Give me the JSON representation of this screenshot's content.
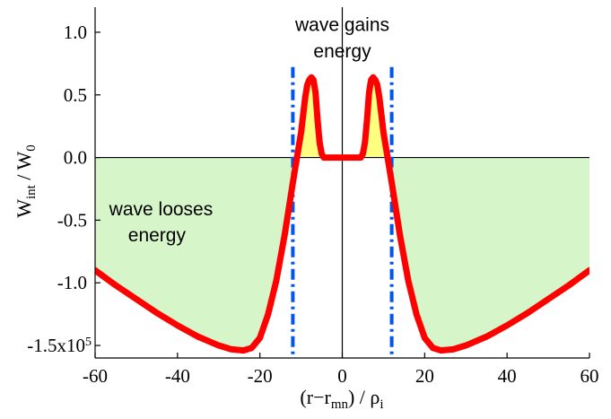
{
  "chart_data": {
    "type": "line",
    "xlabel": {
      "base": "(r−r",
      "sub": "mn",
      "mid": ") / ρ",
      "sub2": "i"
    },
    "ylabel": {
      "base": "W",
      "sub": "int",
      "mid": " / W",
      "sub2": "0"
    },
    "xlim": [
      -60,
      60
    ],
    "ylim": [
      -1.6,
      1.2
    ],
    "x_ticks": [
      {
        "value": -60,
        "label": "-60"
      },
      {
        "value": -40,
        "label": "-40"
      },
      {
        "value": -20,
        "label": "-20"
      },
      {
        "value": 0,
        "label": "0"
      },
      {
        "value": 20,
        "label": "20"
      },
      {
        "value": 40,
        "label": "40"
      },
      {
        "value": 60,
        "label": "60"
      }
    ],
    "y_ticks": [
      {
        "value": 1.0,
        "label": "1.0"
      },
      {
        "value": 0.5,
        "label": "0.5"
      },
      {
        "value": 0.0,
        "label": "0.0"
      },
      {
        "value": -0.5,
        "label": "-0.5"
      },
      {
        "value": -1.0,
        "label": "-1.0"
      },
      {
        "value": -1.5,
        "label": "-1.5x10",
        "sup": "5"
      }
    ],
    "series": [
      {
        "color": "#ff0000",
        "x": [
          -60,
          -55,
          -50,
          -45,
          -40,
          -35,
          -30,
          -27,
          -24,
          -22,
          -20,
          -18,
          -16,
          -14,
          -12,
          -11,
          -10,
          -9,
          -8.5,
          -8,
          -7.5,
          -7,
          -6.5,
          -6,
          -5.5,
          -5,
          -4.5,
          -4,
          -3.5,
          -3,
          -2,
          -1,
          0,
          1,
          2,
          3,
          3.5,
          4,
          4.5,
          5,
          5.5,
          6,
          6.5,
          7,
          7.5,
          8,
          8.5,
          9,
          10,
          11,
          12,
          14,
          16,
          18,
          20,
          22,
          24,
          27,
          30,
          35,
          40,
          45,
          50,
          55,
          60
        ],
        "y": [
          -0.9,
          -1.02,
          -1.13,
          -1.24,
          -1.34,
          -1.43,
          -1.5,
          -1.53,
          -1.54,
          -1.52,
          -1.44,
          -1.25,
          -0.98,
          -0.62,
          -0.2,
          0.0,
          0.2,
          0.48,
          0.58,
          0.62,
          0.64,
          0.62,
          0.52,
          0.3,
          0.12,
          0.03,
          0.0,
          0.0,
          0.0,
          0.0,
          0.0,
          0.0,
          0.0,
          0.0,
          0.0,
          0.0,
          0.0,
          0.0,
          0.0,
          0.03,
          0.12,
          0.3,
          0.52,
          0.62,
          0.64,
          0.62,
          0.58,
          0.48,
          0.2,
          0.0,
          -0.2,
          -0.62,
          -0.98,
          -1.25,
          -1.44,
          -1.52,
          -1.54,
          -1.53,
          -1.5,
          -1.43,
          -1.34,
          -1.24,
          -1.13,
          -1.02,
          -0.9
        ]
      }
    ],
    "vlines": [
      {
        "x": -12,
        "color": "#0055ee",
        "style": "dash-dot"
      },
      {
        "x": 12,
        "color": "#0055ee",
        "style": "dash-dot"
      }
    ],
    "fill": {
      "negative_color": "#d6f5c9",
      "positive_color": "#ffff80"
    },
    "annotations": [
      {
        "id": "gain_line1",
        "text": "wave gains",
        "x": 0,
        "y": 1.01
      },
      {
        "id": "gain_line2",
        "text": "energy",
        "x": 0,
        "y": 0.8
      },
      {
        "id": "loss_line1",
        "text": "wave looses",
        "x": -44,
        "y": -0.46
      },
      {
        "id": "loss_line2",
        "text": "energy",
        "x": -45,
        "y": -0.67
      }
    ],
    "grid": false,
    "legend": "none"
  }
}
